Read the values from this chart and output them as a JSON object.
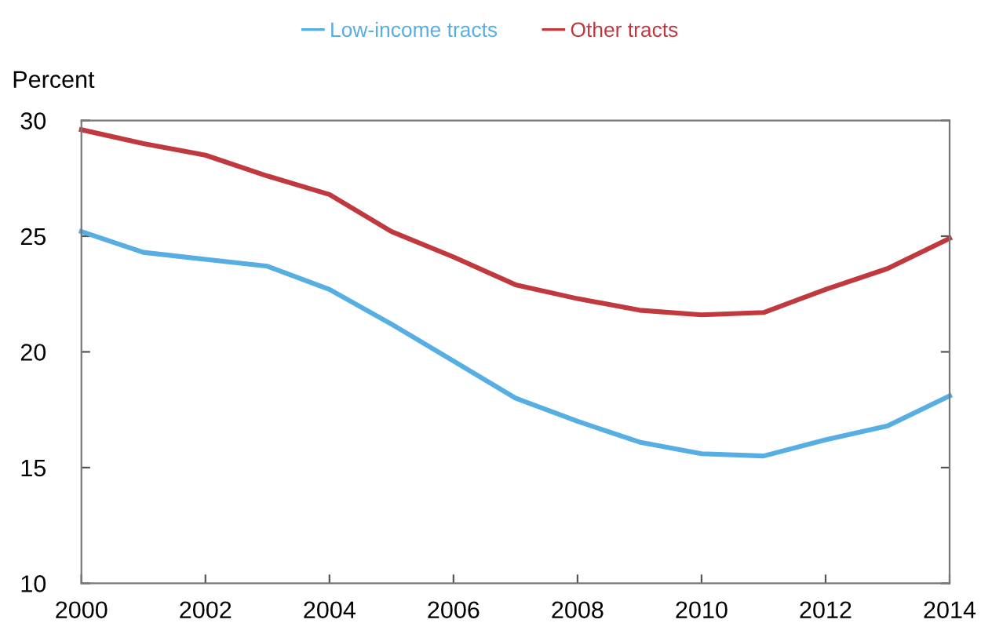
{
  "chart_data": {
    "type": "line",
    "ylabel": "Percent",
    "x": [
      2000,
      2001,
      2002,
      2003,
      2004,
      2005,
      2006,
      2007,
      2008,
      2009,
      2010,
      2011,
      2012,
      2013,
      2014
    ],
    "series": [
      {
        "name": "Low-income tracts",
        "color": "#56aee3",
        "values": [
          25.2,
          24.3,
          24.0,
          23.7,
          22.7,
          21.2,
          19.6,
          18.0,
          17.0,
          16.1,
          15.6,
          15.5,
          16.2,
          16.8,
          18.1
        ]
      },
      {
        "name": "Other tracts",
        "color": "#c0393f",
        "values": [
          29.6,
          29.0,
          28.5,
          27.6,
          26.8,
          25.2,
          24.1,
          22.9,
          22.3,
          21.8,
          21.6,
          21.7,
          22.7,
          23.6,
          24.9
        ]
      }
    ],
    "xlim": [
      2000,
      2014
    ],
    "xticks": [
      2000,
      2002,
      2004,
      2006,
      2008,
      2010,
      2012,
      2014
    ],
    "ylim": [
      10,
      30
    ],
    "yticks": [
      10,
      15,
      20,
      25,
      30
    ],
    "grid": false,
    "legend": "top",
    "marker": "none",
    "line_style": "solid"
  }
}
